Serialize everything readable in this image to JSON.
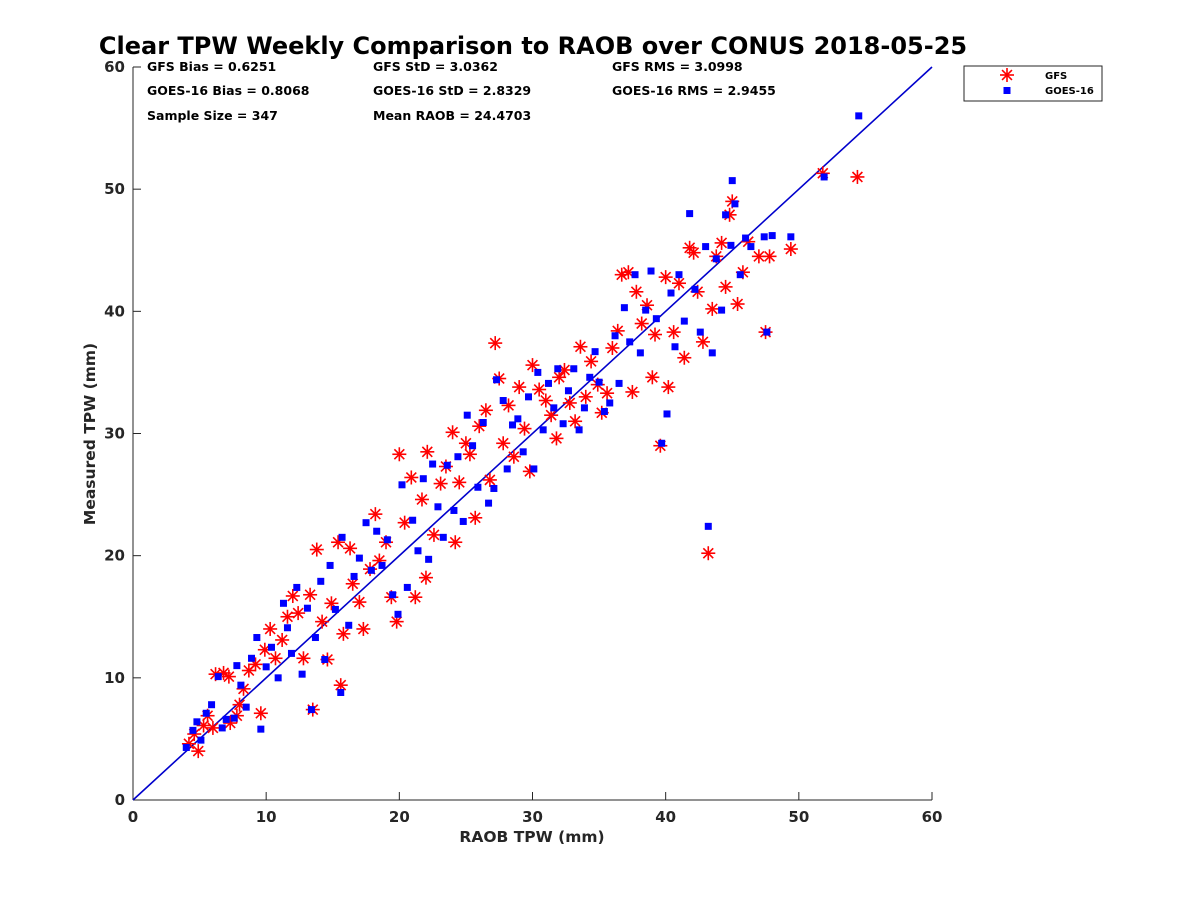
{
  "chart_data": {
    "type": "scatter",
    "title": "Clear TPW Weekly Comparison to RAOB over CONUS 2018-05-25",
    "xlabel": "RAOB TPW (mm)",
    "ylabel": "Measured TPW (mm)",
    "xlim": [
      0,
      60
    ],
    "ylim": [
      0,
      60
    ],
    "xticks": [
      "0",
      "10",
      "20",
      "30",
      "40",
      "50",
      "60"
    ],
    "yticks": [
      "0",
      "10",
      "20",
      "30",
      "40",
      "50",
      "60"
    ],
    "grid": false,
    "legend_position": "top-right",
    "reference_line": {
      "x": [
        0,
        60
      ],
      "y": [
        0,
        60
      ],
      "color": "#0000cc"
    },
    "stats": {
      "gfs_bias": "GFS Bias = 0.6251",
      "gfs_std": "GFS StD = 3.0362",
      "gfs_rms": "GFS RMS = 3.0998",
      "goes_bias": "GOES-16 Bias = 0.8068",
      "goes_std": "GOES-16 StD = 2.8329",
      "goes_rms": "GOES-16 RMS = 2.9455",
      "sample_size": "Sample Size = 347",
      "mean_raob": "Mean RAOB = 24.4703"
    },
    "series": [
      {
        "name": "GFS",
        "marker": "asterisk",
        "color": "#ff0000",
        "points": [
          [
            4.2,
            4.6
          ],
          [
            4.6,
            5.4
          ],
          [
            4.9,
            4.0
          ],
          [
            5.3,
            6.1
          ],
          [
            5.6,
            6.9
          ],
          [
            6.0,
            5.9
          ],
          [
            6.2,
            10.3
          ],
          [
            6.8,
            10.4
          ],
          [
            7.2,
            10.1
          ],
          [
            7.3,
            6.3
          ],
          [
            7.8,
            6.9
          ],
          [
            8.0,
            7.8
          ],
          [
            8.3,
            9.1
          ],
          [
            8.7,
            10.6
          ],
          [
            9.2,
            11.1
          ],
          [
            9.6,
            7.1
          ],
          [
            9.9,
            12.3
          ],
          [
            10.3,
            14.0
          ],
          [
            10.7,
            11.6
          ],
          [
            11.2,
            13.1
          ],
          [
            11.6,
            15.0
          ],
          [
            12.0,
            16.7
          ],
          [
            12.4,
            15.3
          ],
          [
            12.8,
            11.6
          ],
          [
            13.3,
            16.8
          ],
          [
            13.5,
            7.4
          ],
          [
            13.8,
            20.5
          ],
          [
            14.2,
            14.6
          ],
          [
            14.6,
            11.5
          ],
          [
            14.9,
            16.1
          ],
          [
            15.4,
            21.1
          ],
          [
            15.6,
            9.4
          ],
          [
            15.8,
            13.6
          ],
          [
            16.3,
            20.6
          ],
          [
            16.5,
            17.7
          ],
          [
            17.0,
            16.2
          ],
          [
            17.3,
            14.0
          ],
          [
            17.8,
            18.9
          ],
          [
            18.2,
            23.4
          ],
          [
            18.5,
            19.6
          ],
          [
            19.0,
            21.1
          ],
          [
            19.4,
            16.6
          ],
          [
            19.8,
            14.6
          ],
          [
            20.0,
            28.3
          ],
          [
            20.4,
            22.7
          ],
          [
            20.9,
            26.4
          ],
          [
            21.2,
            16.6
          ],
          [
            21.7,
            24.6
          ],
          [
            22.0,
            18.2
          ],
          [
            22.1,
            28.5
          ],
          [
            22.6,
            21.7
          ],
          [
            23.1,
            25.9
          ],
          [
            23.5,
            27.3
          ],
          [
            24.0,
            30.1
          ],
          [
            24.2,
            21.1
          ],
          [
            24.5,
            26.0
          ],
          [
            25.0,
            29.2
          ],
          [
            25.3,
            28.3
          ],
          [
            25.7,
            23.1
          ],
          [
            26.0,
            30.6
          ],
          [
            26.5,
            31.9
          ],
          [
            26.8,
            26.2
          ],
          [
            27.2,
            37.4
          ],
          [
            27.5,
            34.5
          ],
          [
            27.8,
            29.2
          ],
          [
            28.2,
            32.3
          ],
          [
            28.6,
            28.1
          ],
          [
            29.0,
            33.8
          ],
          [
            29.4,
            30.4
          ],
          [
            29.8,
            26.9
          ],
          [
            30.0,
            35.6
          ],
          [
            30.5,
            33.6
          ],
          [
            31.0,
            32.7
          ],
          [
            31.4,
            31.5
          ],
          [
            31.8,
            29.6
          ],
          [
            32.0,
            34.6
          ],
          [
            32.4,
            35.2
          ],
          [
            32.8,
            32.5
          ],
          [
            33.2,
            31.0
          ],
          [
            33.6,
            37.1
          ],
          [
            34.0,
            33.0
          ],
          [
            34.4,
            35.9
          ],
          [
            34.9,
            34.0
          ],
          [
            35.2,
            31.7
          ],
          [
            35.6,
            33.3
          ],
          [
            36.0,
            37.0
          ],
          [
            36.4,
            38.4
          ],
          [
            36.7,
            43.0
          ],
          [
            37.2,
            43.2
          ],
          [
            37.5,
            33.4
          ],
          [
            37.8,
            41.6
          ],
          [
            38.2,
            39.0
          ],
          [
            38.6,
            40.5
          ],
          [
            39.0,
            34.6
          ],
          [
            39.2,
            38.1
          ],
          [
            39.6,
            29.0
          ],
          [
            40.0,
            42.8
          ],
          [
            40.2,
            33.8
          ],
          [
            40.6,
            38.3
          ],
          [
            41.0,
            42.3
          ],
          [
            41.4,
            36.2
          ],
          [
            41.8,
            45.2
          ],
          [
            42.1,
            44.8
          ],
          [
            42.4,
            41.6
          ],
          [
            42.8,
            37.5
          ],
          [
            43.2,
            20.2
          ],
          [
            43.5,
            40.2
          ],
          [
            43.8,
            44.5
          ],
          [
            44.2,
            45.6
          ],
          [
            44.5,
            42.0
          ],
          [
            44.8,
            47.9
          ],
          [
            45.0,
            49.0
          ],
          [
            45.4,
            40.6
          ],
          [
            45.8,
            43.2
          ],
          [
            46.2,
            45.7
          ],
          [
            47.0,
            44.5
          ],
          [
            47.5,
            38.3
          ],
          [
            47.8,
            44.5
          ],
          [
            49.4,
            45.1
          ],
          [
            51.8,
            51.3
          ],
          [
            54.4,
            51.0
          ]
        ]
      },
      {
        "name": "GOES-16",
        "marker": "square",
        "color": "#0000ff",
        "points": [
          [
            4.0,
            4.3
          ],
          [
            4.5,
            5.7
          ],
          [
            4.8,
            6.4
          ],
          [
            5.1,
            4.9
          ],
          [
            5.5,
            7.1
          ],
          [
            5.9,
            7.8
          ],
          [
            6.4,
            10.1
          ],
          [
            6.7,
            5.9
          ],
          [
            7.0,
            6.6
          ],
          [
            7.6,
            6.7
          ],
          [
            7.8,
            11.0
          ],
          [
            8.1,
            9.4
          ],
          [
            8.5,
            7.6
          ],
          [
            8.9,
            11.6
          ],
          [
            9.3,
            13.3
          ],
          [
            9.6,
            5.8
          ],
          [
            10.0,
            10.9
          ],
          [
            10.4,
            12.5
          ],
          [
            10.9,
            10.0
          ],
          [
            11.3,
            16.1
          ],
          [
            11.6,
            14.1
          ],
          [
            11.9,
            12.0
          ],
          [
            12.3,
            17.4
          ],
          [
            12.7,
            10.3
          ],
          [
            13.1,
            15.7
          ],
          [
            13.4,
            7.4
          ],
          [
            13.7,
            13.3
          ],
          [
            14.1,
            17.9
          ],
          [
            14.4,
            11.5
          ],
          [
            14.8,
            19.2
          ],
          [
            15.2,
            15.6
          ],
          [
            15.6,
            8.8
          ],
          [
            15.7,
            21.5
          ],
          [
            16.2,
            14.3
          ],
          [
            16.6,
            18.3
          ],
          [
            17.0,
            19.8
          ],
          [
            17.5,
            22.7
          ],
          [
            17.9,
            18.8
          ],
          [
            18.3,
            22.0
          ],
          [
            18.7,
            19.2
          ],
          [
            19.1,
            21.3
          ],
          [
            19.5,
            16.8
          ],
          [
            19.9,
            15.2
          ],
          [
            20.2,
            25.8
          ],
          [
            20.6,
            17.4
          ],
          [
            21.0,
            22.9
          ],
          [
            21.4,
            20.4
          ],
          [
            21.8,
            26.3
          ],
          [
            22.2,
            19.7
          ],
          [
            22.5,
            27.5
          ],
          [
            22.9,
            24.0
          ],
          [
            23.3,
            21.5
          ],
          [
            23.6,
            27.4
          ],
          [
            24.1,
            23.7
          ],
          [
            24.4,
            28.1
          ],
          [
            24.8,
            22.8
          ],
          [
            25.1,
            31.5
          ],
          [
            25.5,
            29.0
          ],
          [
            25.9,
            25.6
          ],
          [
            26.3,
            30.9
          ],
          [
            26.7,
            24.3
          ],
          [
            27.1,
            25.5
          ],
          [
            27.3,
            34.4
          ],
          [
            27.8,
            32.7
          ],
          [
            28.1,
            27.1
          ],
          [
            28.5,
            30.7
          ],
          [
            28.9,
            31.2
          ],
          [
            29.3,
            28.5
          ],
          [
            29.7,
            33.0
          ],
          [
            30.1,
            27.1
          ],
          [
            30.4,
            35.0
          ],
          [
            30.8,
            30.3
          ],
          [
            31.2,
            34.1
          ],
          [
            31.6,
            32.1
          ],
          [
            31.9,
            35.3
          ],
          [
            32.3,
            30.8
          ],
          [
            32.7,
            33.5
          ],
          [
            33.1,
            35.3
          ],
          [
            33.5,
            30.3
          ],
          [
            33.9,
            32.1
          ],
          [
            34.3,
            34.6
          ],
          [
            34.7,
            36.7
          ],
          [
            35.0,
            34.2
          ],
          [
            35.4,
            31.8
          ],
          [
            35.8,
            32.5
          ],
          [
            36.2,
            38.0
          ],
          [
            36.5,
            34.1
          ],
          [
            36.9,
            40.3
          ],
          [
            37.3,
            37.5
          ],
          [
            37.7,
            43.0
          ],
          [
            38.1,
            36.6
          ],
          [
            38.5,
            40.1
          ],
          [
            38.9,
            43.3
          ],
          [
            39.3,
            39.4
          ],
          [
            39.7,
            29.2
          ],
          [
            40.1,
            31.6
          ],
          [
            40.4,
            41.5
          ],
          [
            40.7,
            37.1
          ],
          [
            41.0,
            43.0
          ],
          [
            41.4,
            39.2
          ],
          [
            41.8,
            48.0
          ],
          [
            42.2,
            41.8
          ],
          [
            42.6,
            38.3
          ],
          [
            43.0,
            45.3
          ],
          [
            43.2,
            22.4
          ],
          [
            43.5,
            36.6
          ],
          [
            43.8,
            44.3
          ],
          [
            44.2,
            40.1
          ],
          [
            44.5,
            47.9
          ],
          [
            44.9,
            45.4
          ],
          [
            45.0,
            50.7
          ],
          [
            45.2,
            48.8
          ],
          [
            45.6,
            43.0
          ],
          [
            46.0,
            46.0
          ],
          [
            46.4,
            45.3
          ],
          [
            47.4,
            46.1
          ],
          [
            47.6,
            38.3
          ],
          [
            48.0,
            46.2
          ],
          [
            49.4,
            46.1
          ],
          [
            51.9,
            51.0
          ],
          [
            54.5,
            56.0
          ]
        ]
      }
    ]
  }
}
